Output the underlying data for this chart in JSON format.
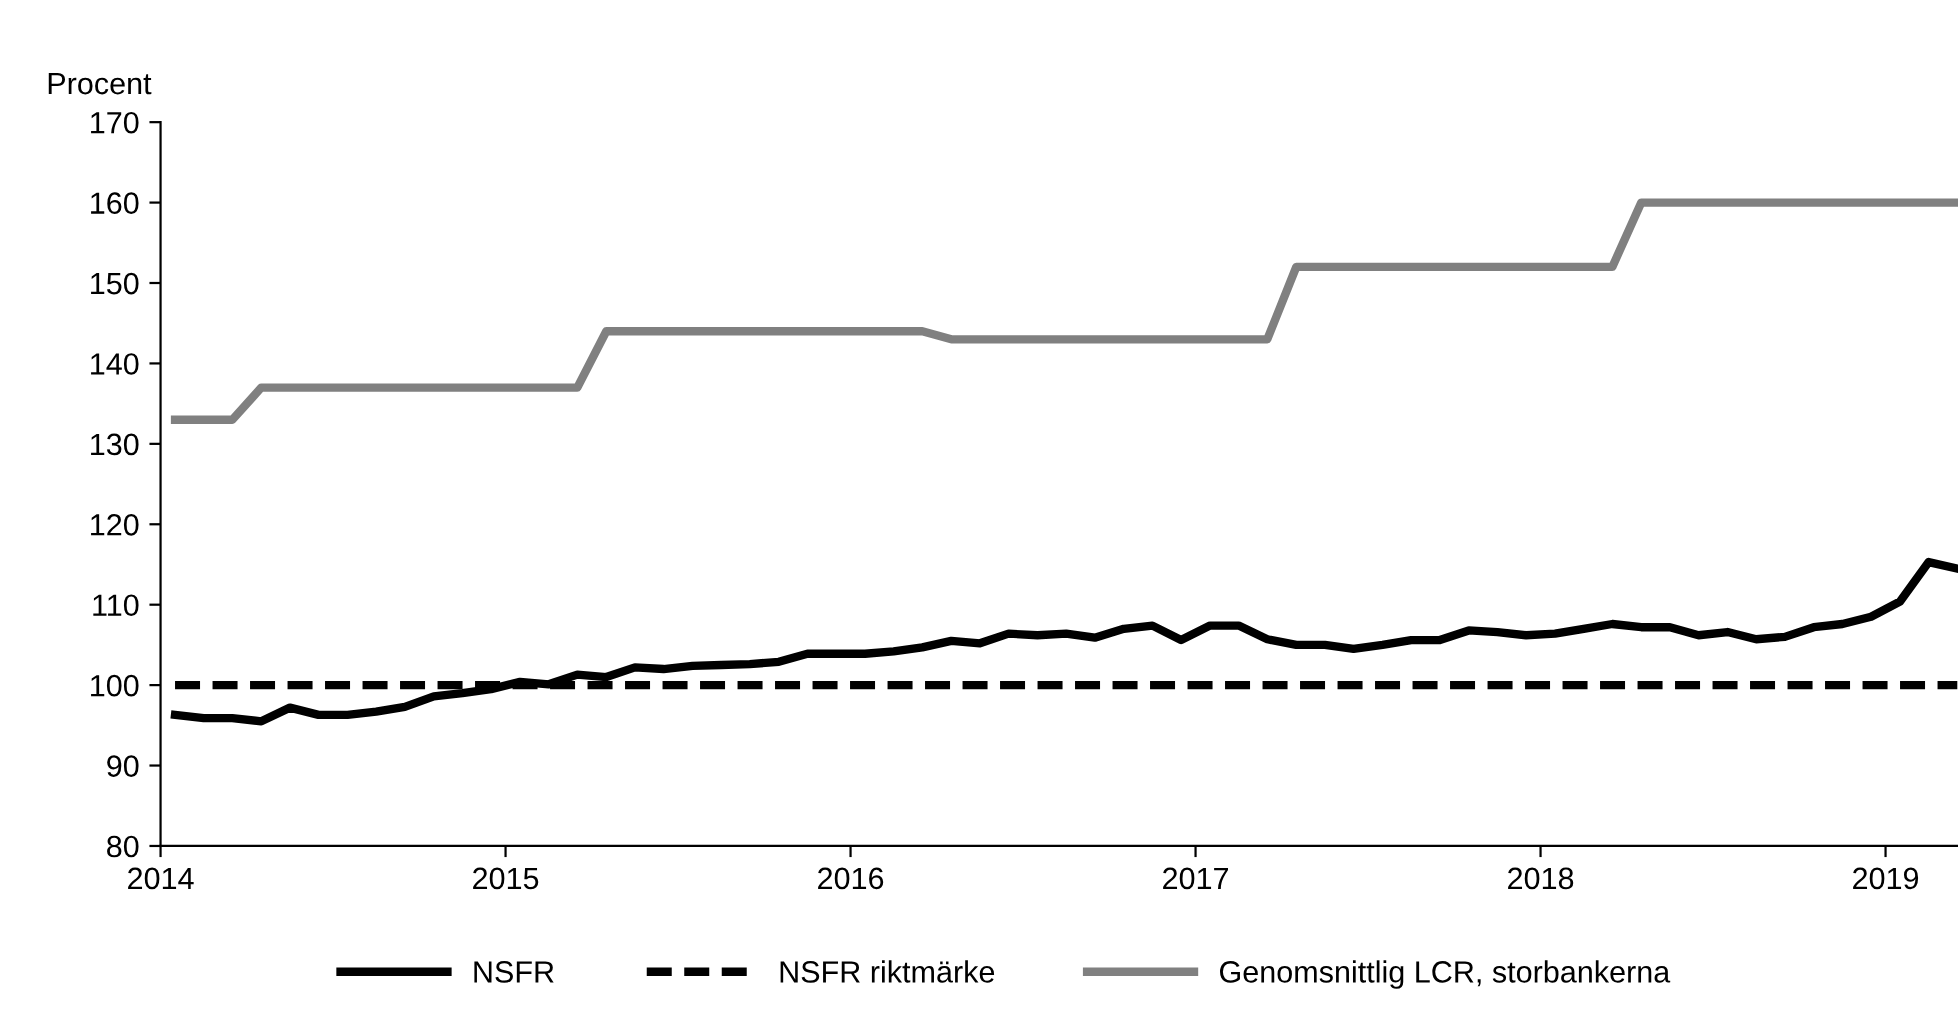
{
  "chart_data": {
    "type": "line",
    "ylabel": "Procent",
    "x": [
      2014.042,
      2014.125,
      2014.208,
      2014.292,
      2014.375,
      2014.458,
      2014.542,
      2014.625,
      2014.708,
      2014.792,
      2014.875,
      2014.958,
      2015.042,
      2015.125,
      2015.208,
      2015.292,
      2015.375,
      2015.458,
      2015.542,
      2015.625,
      2015.708,
      2015.792,
      2015.875,
      2015.958,
      2016.042,
      2016.125,
      2016.208,
      2016.292,
      2016.375,
      2016.458,
      2016.542,
      2016.625,
      2016.708,
      2016.792,
      2016.875,
      2016.958,
      2017.042,
      2017.125,
      2017.208,
      2017.292,
      2017.375,
      2017.458,
      2017.542,
      2017.625,
      2017.708,
      2017.792,
      2017.875,
      2017.958,
      2018.042,
      2018.125,
      2018.208,
      2018.292,
      2018.375,
      2018.458,
      2018.542,
      2018.625,
      2018.708,
      2018.792,
      2018.875,
      2018.958,
      2019.042,
      2019.125,
      2019.208
    ],
    "series": [
      {
        "name": "NSFR",
        "color": "#000000",
        "line_style": "solid",
        "values": [
          96.3,
          95.9,
          95.9,
          95.5,
          97.2,
          96.3,
          96.3,
          96.7,
          97.3,
          98.6,
          99.0,
          99.5,
          100.4,
          100.1,
          101.3,
          101.0,
          102.2,
          102.0,
          102.4,
          102.5,
          102.6,
          102.9,
          103.9,
          103.9,
          103.9,
          104.2,
          104.7,
          105.5,
          105.2,
          106.4,
          106.2,
          106.4,
          105.9,
          107.0,
          107.4,
          105.6,
          107.4,
          107.4,
          105.7,
          105.0,
          105.0,
          104.5,
          105.0,
          105.6,
          105.6,
          106.8,
          106.6,
          106.2,
          106.4,
          107.0,
          107.6,
          107.2,
          107.2,
          106.2,
          106.6,
          105.7,
          106.0,
          107.2,
          107.6,
          108.5,
          110.4,
          115.3,
          114.5
        ]
      },
      {
        "name": "NSFR riktmärke",
        "color": "#000000",
        "line_style": "dashed",
        "values": [
          100,
          100,
          100,
          100,
          100,
          100,
          100,
          100,
          100,
          100,
          100,
          100,
          100,
          100,
          100,
          100,
          100,
          100,
          100,
          100,
          100,
          100,
          100,
          100,
          100,
          100,
          100,
          100,
          100,
          100,
          100,
          100,
          100,
          100,
          100,
          100,
          100,
          100,
          100,
          100,
          100,
          100,
          100,
          100,
          100,
          100,
          100,
          100,
          100,
          100,
          100,
          100,
          100,
          100,
          100,
          100,
          100,
          100,
          100,
          100,
          100,
          100,
          100
        ]
      },
      {
        "name": "Genomsnittlig LCR, storbankerna",
        "color": "#808080",
        "line_style": "solid",
        "values": [
          133,
          133,
          133,
          137,
          137,
          137,
          137,
          137,
          137,
          137,
          137,
          137,
          137,
          137,
          137,
          144,
          144,
          144,
          144,
          144,
          144,
          144,
          144,
          144,
          144,
          144,
          144,
          143,
          143,
          143,
          143,
          143,
          143,
          143,
          143,
          143,
          143,
          143,
          143,
          152,
          152,
          152,
          152,
          152,
          152,
          152,
          152,
          152,
          152,
          152,
          152,
          160,
          160,
          160,
          160,
          160,
          160,
          160,
          160,
          160,
          160,
          160,
          160
        ]
      }
    ],
    "xlim": [
      2014,
      2019.21
    ],
    "xticks": [
      2014,
      2015,
      2016,
      2017,
      2018,
      2019
    ],
    "ylim": [
      80,
      170
    ],
    "yticks": [
      80,
      90,
      100,
      110,
      120,
      130,
      140,
      150,
      160,
      170
    ],
    "grid": false,
    "legend": "bottom",
    "marker": "none"
  }
}
